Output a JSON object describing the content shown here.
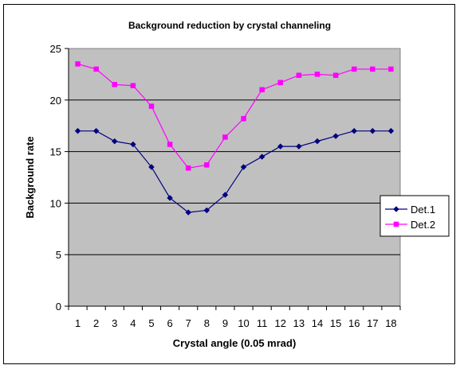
{
  "chart_data": {
    "type": "line",
    "title": "Background reduction by crystal channeling",
    "xlabel": "Crystal angle (0.05 mrad)",
    "ylabel": "Background rate",
    "categories": [
      "1",
      "2",
      "3",
      "4",
      "5",
      "6",
      "7",
      "8",
      "9",
      "10",
      "11",
      "12",
      "13",
      "14",
      "15",
      "16",
      "17",
      "18"
    ],
    "ylim": [
      0,
      25
    ],
    "yticks": [
      0,
      5,
      10,
      15,
      20,
      25
    ],
    "grid": true,
    "legend_position": "right",
    "series": [
      {
        "name": "Det.1",
        "color": "#000080",
        "marker": "diamond",
        "values": [
          17.0,
          17.0,
          16.0,
          15.7,
          13.5,
          10.5,
          9.1,
          9.3,
          10.8,
          13.5,
          14.5,
          15.5,
          15.5,
          16.0,
          16.5,
          17.0,
          17.0,
          17.0
        ]
      },
      {
        "name": "Det.2",
        "color": "#FF00FF",
        "marker": "square",
        "values": [
          23.5,
          23.0,
          21.5,
          21.4,
          19.4,
          15.7,
          13.4,
          13.7,
          16.4,
          18.2,
          21.0,
          21.7,
          22.4,
          22.5,
          22.4,
          23.0,
          23.0,
          23.0
        ]
      }
    ]
  }
}
